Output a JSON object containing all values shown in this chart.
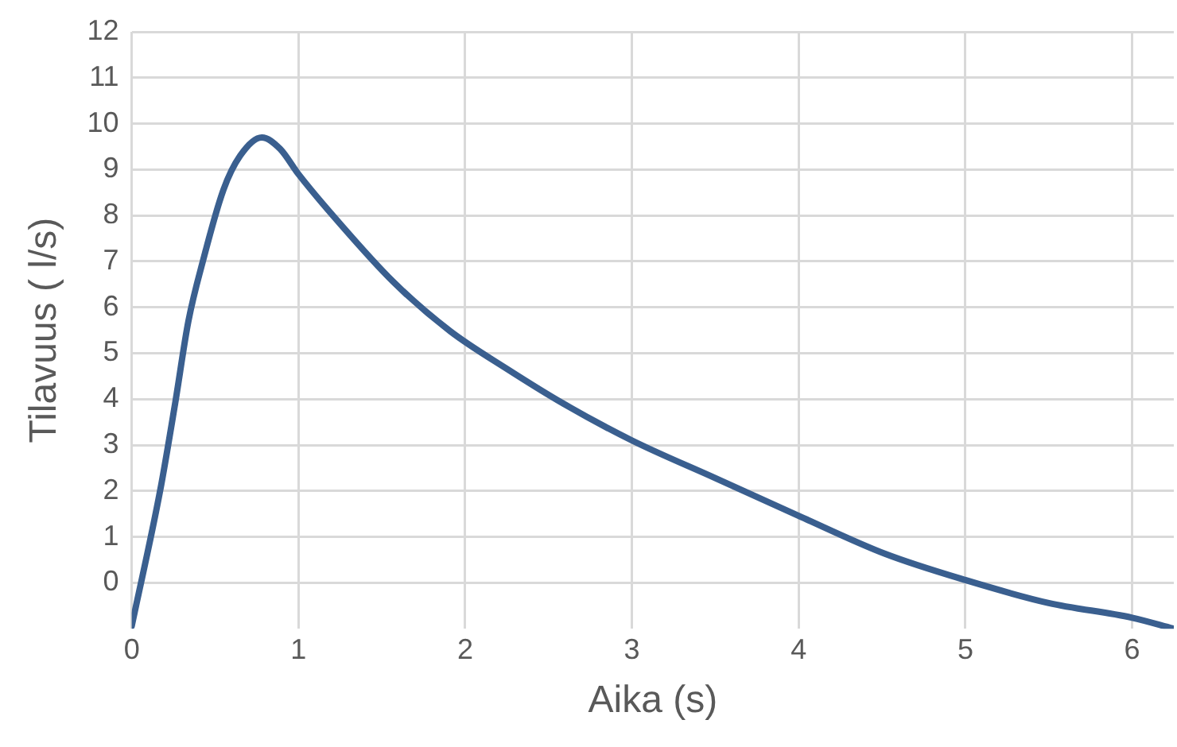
{
  "chart_data": {
    "type": "line",
    "xlabel": "Aika (s)",
    "ylabel": "Tilavuus ( l/s)",
    "x": [
      0,
      0.17,
      0.26,
      0.34,
      0.43,
      0.55,
      0.65,
      0.78,
      0.89,
      1,
      1.23,
      1.57,
      1.91,
      2.25,
      2.59,
      3,
      3.5,
      4,
      4.52,
      5,
      5.5,
      6,
      6.25
    ],
    "series": [
      {
        "color": "#3a5f8f",
        "values": [
          -0.94,
          2.0,
          3.9,
          5.7,
          7.05,
          8.56,
          9.3,
          9.7,
          9.45,
          8.9,
          7.9,
          6.55,
          5.48,
          4.66,
          3.9,
          3.1,
          2.28,
          1.46,
          0.63,
          0.06,
          -0.44,
          -0.76,
          -1.0
        ]
      }
    ],
    "xlim": [
      0,
      6.25
    ],
    "xticks": [
      0,
      1,
      2,
      3,
      4,
      5,
      6
    ],
    "ylim": [
      -1,
      12
    ],
    "yticks": [
      0,
      1,
      2,
      3,
      4,
      5,
      6,
      7,
      8,
      9,
      10,
      11,
      12
    ],
    "grid": true,
    "legend": false,
    "marker": "none",
    "line_style": "solid"
  }
}
